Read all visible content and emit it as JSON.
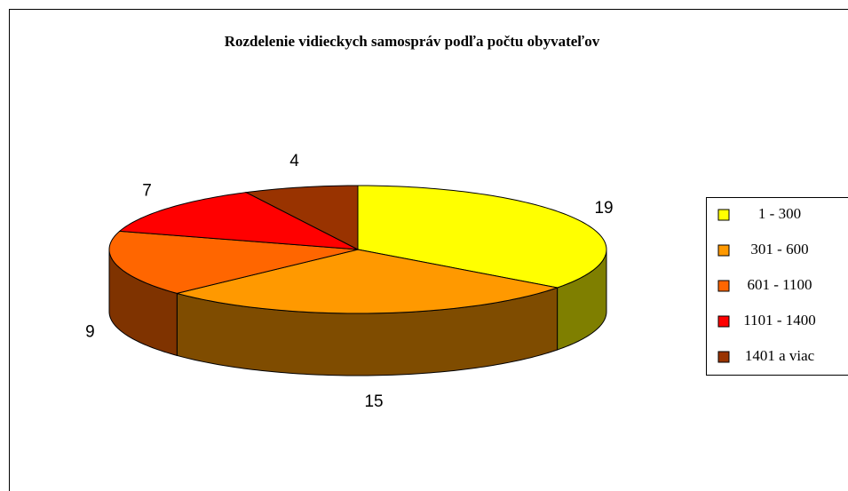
{
  "chart_data": {
    "type": "pie3d",
    "title": "Rozdelenie vidieckych samospráv podľa počtu obyvateľov",
    "categories": [
      "1 - 300",
      "301 - 600",
      "601 - 1100",
      "1101 - 1400",
      "1401 a viac"
    ],
    "values": [
      19,
      15,
      9,
      7,
      4
    ],
    "colors": [
      "#ffff00",
      "#ff9900",
      "#ff6600",
      "#ff0000",
      "#993300"
    ],
    "legend": "right"
  }
}
